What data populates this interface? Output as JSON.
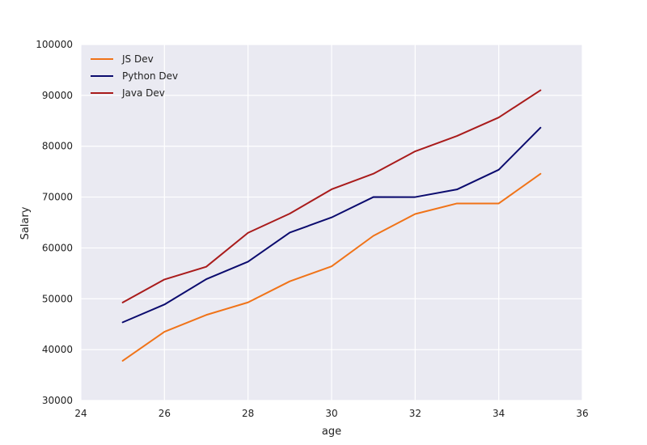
{
  "chart_data": {
    "type": "line",
    "title": "",
    "xlabel": "age",
    "ylabel": "Salary",
    "xlim": [
      24,
      36
    ],
    "ylim": [
      30000,
      100000
    ],
    "xticks": [
      24,
      26,
      28,
      30,
      32,
      34,
      36
    ],
    "yticks": [
      30000,
      40000,
      50000,
      60000,
      70000,
      80000,
      90000,
      100000
    ],
    "grid": true,
    "legend_position": "top-left",
    "background": "#eaeaf2",
    "x": [
      25,
      26,
      27,
      28,
      29,
      30,
      31,
      32,
      33,
      34,
      35
    ],
    "series": [
      {
        "name": "JS Dev",
        "color": "#f07318",
        "values": [
          37810,
          43515,
          46823,
          49293,
          53437,
          56373,
          62375,
          66674,
          68745,
          68746,
          74583
        ]
      },
      {
        "name": "Python Dev",
        "color": "#0b0b6e",
        "values": [
          45372,
          48876,
          53850,
          57287,
          63016,
          65998,
          70003,
          70000,
          71496,
          75370,
          83640
        ]
      },
      {
        "name": "Java Dev",
        "color": "#a91b1b",
        "values": [
          49263,
          53800,
          56300,
          62974,
          66748,
          71530,
          74589,
          78999,
          82015,
          85650,
          91000
        ]
      }
    ]
  }
}
